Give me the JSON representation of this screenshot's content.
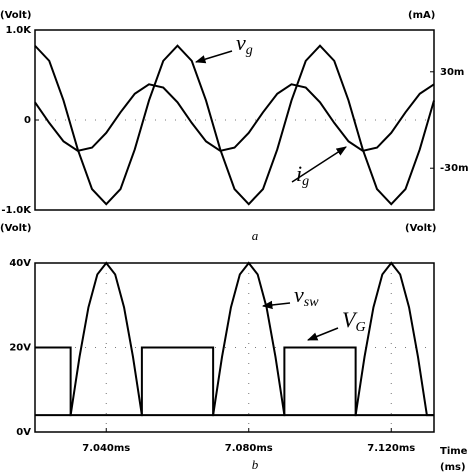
{
  "chart_data": [
    {
      "type": "line",
      "caption": "a",
      "y_label": "(Volt)",
      "y2_label": "(mA)",
      "xlim": [
        7.02,
        7.132
      ],
      "ylim": [
        -1000,
        1000
      ],
      "yticks": [
        {
          "value": 1000,
          "label": "1.0K"
        },
        0,
        {
          "value": -1000,
          "label": "-1.0K"
        }
      ],
      "y2lim": [
        -56,
        56
      ],
      "y2ticks": [
        {
          "value": 30,
          "label": "30m"
        },
        {
          "value": -30,
          "label": "-30m"
        }
      ],
      "grid": true,
      "x": [
        7.02,
        7.024,
        7.028,
        7.032,
        7.036,
        7.04,
        7.044,
        7.048,
        7.052,
        7.056,
        7.06,
        7.064,
        7.068,
        7.072,
        7.076,
        7.08,
        7.084,
        7.088,
        7.092,
        7.096,
        7.1,
        7.104,
        7.108,
        7.112,
        7.116,
        7.12,
        7.124,
        7.128,
        7.132
      ],
      "series": [
        {
          "name": "v",
          "subscript": "g",
          "color": "#000000",
          "values": [
            825,
            657,
            217,
            -327,
            -767,
            -935,
            -767,
            -327,
            217,
            657,
            825,
            657,
            217,
            -327,
            -767,
            -935,
            -767,
            -327,
            217,
            657,
            825,
            657,
            217,
            -327,
            -767,
            -935,
            -767,
            -327,
            217
          ]
        },
        {
          "name": "i",
          "subscript": "g",
          "color": "#000000",
          "axis": "y2",
          "values": [
            11.0,
            -1.8,
            -13.3,
            -19.2,
            -17.2,
            -8.0,
            4.8,
            16.3,
            22.2,
            20.2,
            11.0,
            -1.8,
            -13.3,
            -19.2,
            -17.2,
            -8.0,
            4.8,
            16.3,
            22.2,
            20.2,
            11.0,
            -1.8,
            -13.3,
            -19.2,
            -17.2,
            -8.0,
            4.8,
            16.3,
            22.2
          ]
        }
      ]
    },
    {
      "type": "line",
      "caption": "b",
      "y_label": "(Volt)",
      "y2_label": "(Volt)",
      "x_label": "Time",
      "x_unit": "(ms)",
      "xlim": [
        7.02,
        7.132
      ],
      "xticks": [
        {
          "value": 7.04,
          "label": "7.040ms"
        },
        {
          "value": 7.08,
          "label": "7.080ms"
        },
        {
          "value": 7.12,
          "label": "7.120ms"
        }
      ],
      "ylim": [
        0,
        40
      ],
      "yticks": [
        {
          "value": 40,
          "label": "40V"
        },
        {
          "value": 20,
          "label": "20V"
        },
        {
          "value": 0,
          "label": "0V"
        }
      ],
      "grid": true,
      "series": [
        {
          "name": "v",
          "subscript": "sw",
          "color": "#000000",
          "x": [
            7.02,
            7.03,
            7.0325,
            7.035,
            7.0375,
            7.04,
            7.0425,
            7.045,
            7.0475,
            7.05,
            7.07,
            7.0725,
            7.075,
            7.0775,
            7.08,
            7.0825,
            7.085,
            7.0875,
            7.09,
            7.11,
            7.1125,
            7.115,
            7.1175,
            7.12,
            7.1225,
            7.125,
            7.1275,
            7.13,
            7.132
          ],
          "values": [
            4,
            4,
            17.8,
            29.5,
            37.3,
            40,
            37.3,
            29.5,
            17.8,
            4,
            4,
            17.8,
            29.5,
            37.3,
            40,
            37.3,
            29.5,
            17.8,
            4,
            4,
            17.8,
            29.5,
            37.3,
            40,
            37.3,
            29.5,
            17.8,
            4,
            4
          ]
        },
        {
          "name": "V",
          "subscript": "G",
          "color": "#000000",
          "x": [
            7.02,
            7.03,
            7.03,
            7.05,
            7.05,
            7.07,
            7.07,
            7.09,
            7.09,
            7.11,
            7.11,
            7.132
          ],
          "values": [
            20,
            20,
            4,
            4,
            20,
            20,
            4,
            4,
            20,
            20,
            4,
            4
          ]
        }
      ]
    }
  ]
}
